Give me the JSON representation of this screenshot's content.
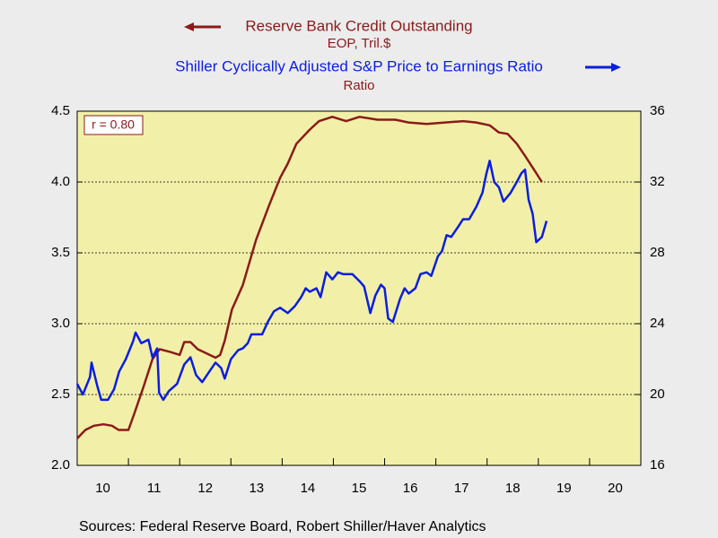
{
  "chart_data": {
    "type": "line",
    "source": "Sources:  Federal Reserve Board, Robert Shiller/Haver Analytics",
    "annotation": "r = 0.80",
    "xlim": [
      2010,
      2021
    ],
    "xticks": [
      {
        "value": 2010.5,
        "label": "10"
      },
      {
        "value": 2011.5,
        "label": "11"
      },
      {
        "value": 2012.5,
        "label": "12"
      },
      {
        "value": 2013.5,
        "label": "13"
      },
      {
        "value": 2014.5,
        "label": "14"
      },
      {
        "value": 2015.5,
        "label": "15"
      },
      {
        "value": 2016.5,
        "label": "16"
      },
      {
        "value": 2017.5,
        "label": "17"
      },
      {
        "value": 2018.5,
        "label": "18"
      },
      {
        "value": 2019.5,
        "label": "19"
      },
      {
        "value": 2020.5,
        "label": "20"
      }
    ],
    "ylim": [
      2.0,
      4.5
    ],
    "yticks": [
      {
        "value": 2,
        "label": "2.0"
      },
      2.5,
      {
        "value": 3,
        "label": "3.0"
      },
      3.5,
      {
        "value": 4,
        "label": "4.0"
      },
      4.5
    ],
    "y2lim": [
      16,
      36
    ],
    "y2ticks": [
      16,
      20,
      24,
      28,
      32,
      36
    ],
    "grid": true,
    "series": [
      {
        "name": "Reserve Bank Credit Outstanding",
        "unit": "EOP, Tril.$",
        "color": "#8b1a1a",
        "axis": "y",
        "x": [
          2010.0,
          2010.16,
          2010.33,
          2010.51,
          2010.68,
          2010.81,
          2011.0,
          2011.12,
          2011.3,
          2011.47,
          2011.61,
          2011.82,
          2012.0,
          2012.09,
          2012.21,
          2012.35,
          2012.53,
          2012.7,
          2012.79,
          2012.88,
          2013.02,
          2013.23,
          2013.49,
          2013.75,
          2013.96,
          2014.11,
          2014.28,
          2014.54,
          2014.72,
          2014.98,
          2015.25,
          2015.51,
          2015.86,
          2016.21,
          2016.47,
          2016.82,
          2017.18,
          2017.53,
          2017.79,
          2018.05,
          2018.23,
          2018.4,
          2018.58,
          2018.75,
          2018.93,
          2019.07
        ],
        "values": [
          2.19,
          2.25,
          2.28,
          2.29,
          2.28,
          2.25,
          2.25,
          2.37,
          2.56,
          2.75,
          2.82,
          2.8,
          2.78,
          2.87,
          2.87,
          2.82,
          2.79,
          2.76,
          2.78,
          2.88,
          3.1,
          3.27,
          3.59,
          3.84,
          4.03,
          4.13,
          4.27,
          4.37,
          4.43,
          4.46,
          4.43,
          4.46,
          4.44,
          4.44,
          4.42,
          4.41,
          4.42,
          4.43,
          4.42,
          4.4,
          4.35,
          4.34,
          4.27,
          4.18,
          4.08,
          4.0
        ]
      },
      {
        "name": "Shiller Cyclically Adjusted S&P Price to Earnings Ratio",
        "unit": "Ratio",
        "color": "#0a1ee0",
        "axis": "y2",
        "x": [
          2010.0,
          2010.11,
          2010.25,
          2010.28,
          2010.39,
          2010.47,
          2010.6,
          2010.72,
          2010.82,
          2010.95,
          2011.09,
          2011.14,
          2011.25,
          2011.39,
          2011.47,
          2011.56,
          2011.6,
          2011.68,
          2011.79,
          2011.95,
          2012.09,
          2012.21,
          2012.32,
          2012.44,
          2012.58,
          2012.7,
          2012.81,
          2012.88,
          2013.0,
          2013.14,
          2013.23,
          2013.33,
          2013.4,
          2013.49,
          2013.61,
          2013.72,
          2013.84,
          2013.96,
          2014.11,
          2014.25,
          2014.37,
          2014.46,
          2014.54,
          2014.67,
          2014.75,
          2014.86,
          2014.98,
          2015.09,
          2015.19,
          2015.37,
          2015.51,
          2015.6,
          2015.72,
          2015.82,
          2015.93,
          2016.0,
          2016.07,
          2016.16,
          2016.3,
          2016.39,
          2016.47,
          2016.6,
          2016.7,
          2016.82,
          2016.91,
          2017.04,
          2017.12,
          2017.21,
          2017.3,
          2017.44,
          2017.53,
          2017.65,
          2017.79,
          2017.91,
          2017.98,
          2018.05,
          2018.14,
          2018.23,
          2018.32,
          2018.46,
          2018.58,
          2018.67,
          2018.74,
          2018.81,
          2018.89,
          2018.96,
          2019.07,
          2019.16
        ],
        "values": [
          20.6,
          20.0,
          21.0,
          21.8,
          20.5,
          19.7,
          19.7,
          20.3,
          21.3,
          22.0,
          23.0,
          23.5,
          22.9,
          23.1,
          22.1,
          22.6,
          20.1,
          19.7,
          20.2,
          20.6,
          21.7,
          22.1,
          21.1,
          20.7,
          21.3,
          21.8,
          21.5,
          20.9,
          22.0,
          22.5,
          22.6,
          22.9,
          23.4,
          23.4,
          23.4,
          24.1,
          24.7,
          24.9,
          24.6,
          25.0,
          25.5,
          26.0,
          25.8,
          26.0,
          25.5,
          26.9,
          26.5,
          26.9,
          26.8,
          26.8,
          26.4,
          26.1,
          24.6,
          25.6,
          26.2,
          26.0,
          24.3,
          24.1,
          25.4,
          26.0,
          25.7,
          26.0,
          26.8,
          26.9,
          26.7,
          27.8,
          28.1,
          29.0,
          28.9,
          29.5,
          29.9,
          29.9,
          30.6,
          31.4,
          32.4,
          33.2,
          32.0,
          31.7,
          30.9,
          31.4,
          32.0,
          32.5,
          32.7,
          31.0,
          30.2,
          28.6,
          28.9,
          29.8
        ]
      }
    ]
  }
}
